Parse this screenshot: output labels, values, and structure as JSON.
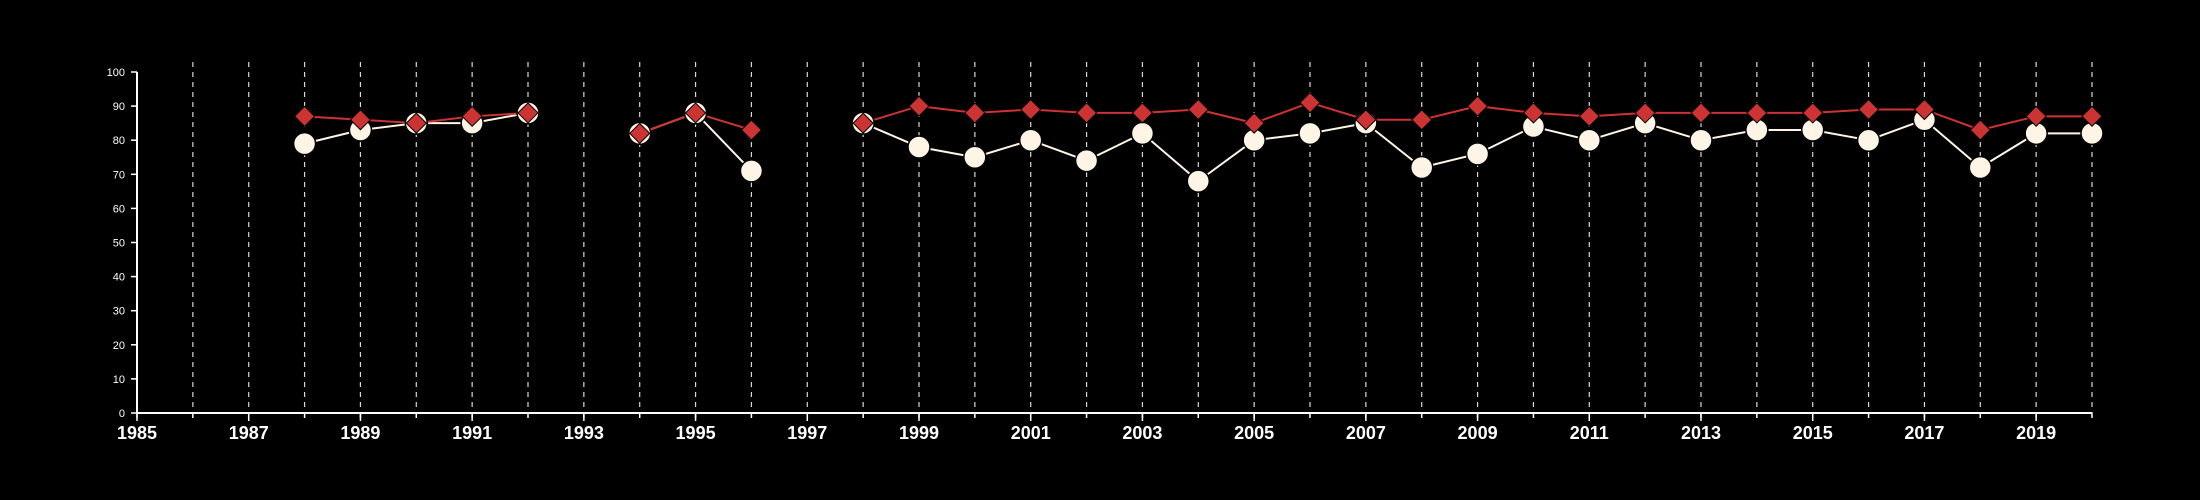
{
  "chart_data": {
    "type": "line",
    "title": "",
    "xlabel": "",
    "ylabel": "",
    "xlim": [
      1985,
      2020
    ],
    "ylim": [
      0,
      100
    ],
    "x_ticks": [
      "1985",
      "1987",
      "1989",
      "1991",
      "1993",
      "1995",
      "1997",
      "1999",
      "2001",
      "2003",
      "2005",
      "2007",
      "2009",
      "2011",
      "2013",
      "2015",
      "2017",
      "2019"
    ],
    "y_ticks": [
      "0",
      "10",
      "20",
      "30",
      "40",
      "50",
      "60",
      "70",
      "80",
      "90",
      "100"
    ],
    "grid": "vertical dashed lines at each year",
    "colors": {
      "background": "#000000",
      "series_circle": "#fff5e6",
      "series_diamond": "#cc3333",
      "axis": "#ffffff",
      "grid": "#ffffff"
    },
    "series": [
      {
        "marker": "circle",
        "points": [
          [
            1988,
            79
          ],
          [
            1989,
            83
          ],
          [
            1990,
            85
          ],
          [
            1991,
            85
          ],
          [
            1992,
            88
          ],
          [
            1994,
            82
          ],
          [
            1995,
            88
          ],
          [
            1996,
            71
          ],
          [
            1998,
            85
          ],
          [
            1999,
            78
          ],
          [
            2000,
            75
          ],
          [
            2001,
            80
          ],
          [
            2002,
            74
          ],
          [
            2003,
            82
          ],
          [
            2004,
            68
          ],
          [
            2005,
            80
          ],
          [
            2006,
            82
          ],
          [
            2007,
            85
          ],
          [
            2008,
            72
          ],
          [
            2009,
            76
          ],
          [
            2010,
            84
          ],
          [
            2011,
            80
          ],
          [
            2012,
            85
          ],
          [
            2013,
            80
          ],
          [
            2014,
            83
          ],
          [
            2015,
            83
          ],
          [
            2016,
            80
          ],
          [
            2017,
            86
          ],
          [
            2018,
            72
          ],
          [
            2019,
            82
          ],
          [
            2020,
            82
          ]
        ]
      },
      {
        "marker": "diamond",
        "points": [
          [
            1988,
            87
          ],
          [
            1989,
            86
          ],
          [
            1990,
            85
          ],
          [
            1991,
            87
          ],
          [
            1992,
            88
          ],
          [
            1994,
            82
          ],
          [
            1995,
            88
          ],
          [
            1996,
            83
          ],
          [
            1998,
            85
          ],
          [
            1999,
            90
          ],
          [
            2000,
            88
          ],
          [
            2001,
            89
          ],
          [
            2002,
            88
          ],
          [
            2003,
            88
          ],
          [
            2004,
            89
          ],
          [
            2005,
            85
          ],
          [
            2006,
            91
          ],
          [
            2007,
            86
          ],
          [
            2008,
            86
          ],
          [
            2009,
            90
          ],
          [
            2010,
            88
          ],
          [
            2011,
            87
          ],
          [
            2012,
            88
          ],
          [
            2013,
            88
          ],
          [
            2014,
            88
          ],
          [
            2015,
            88
          ],
          [
            2016,
            89
          ],
          [
            2017,
            89
          ],
          [
            2018,
            83
          ],
          [
            2019,
            87
          ],
          [
            2020,
            87
          ]
        ]
      }
    ]
  }
}
